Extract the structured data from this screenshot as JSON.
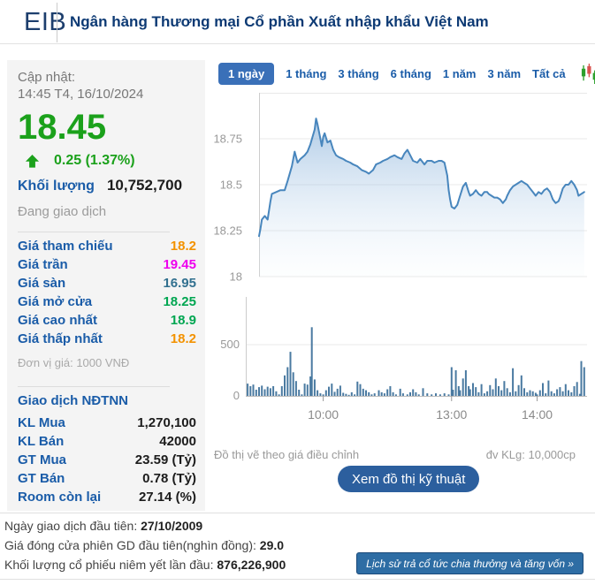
{
  "header": {
    "ticker": "EIB",
    "company_name": "Ngân hàng Thương mại Cổ phần Xuất nhập khẩu Việt Nam"
  },
  "sidebar": {
    "updated_label": "Cập nhật:",
    "updated_time": "14:45 T4, 16/10/2024",
    "price": "18.45",
    "change": "0.25 (1.37%)",
    "volume_label": "Khối lượng",
    "volume": "10,752,700",
    "session_status": "Đang giao dịch",
    "price_rows": [
      {
        "label": "Giá tham chiếu",
        "value": "18.2",
        "color": "#f39200"
      },
      {
        "label": "Giá trần",
        "value": "19.45",
        "color": "#ee00ee"
      },
      {
        "label": "Giá sàn",
        "value": "16.95",
        "color": "#31708f"
      },
      {
        "label": "Giá mở cửa",
        "value": "18.25",
        "color": "#00a651"
      },
      {
        "label": "Giá cao nhất",
        "value": "18.9",
        "color": "#00a651"
      },
      {
        "label": "Giá thấp nhất",
        "value": "18.2",
        "color": "#f39200"
      }
    ],
    "price_unit_note": "Đơn vị giá: 1000 VNĐ",
    "foreign_header": "Giao dịch NĐTNN",
    "foreign_rows": [
      {
        "label": "KL Mua",
        "value": "1,270,100"
      },
      {
        "label": "KL Bán",
        "value": "42000"
      },
      {
        "label": "GT Mua",
        "value": "23.59 (Tỷ)"
      },
      {
        "label": "GT Bán",
        "value": "0.78 (Tỷ)"
      },
      {
        "label": "Room còn lại",
        "value": "27.14 (%)"
      }
    ]
  },
  "tabs": [
    {
      "label": "1 ngày",
      "active": true
    },
    {
      "label": "1 tháng",
      "active": false
    },
    {
      "label": "3 tháng",
      "active": false
    },
    {
      "label": "6 tháng",
      "active": false
    },
    {
      "label": "1 năm",
      "active": false
    },
    {
      "label": "3 năm",
      "active": false
    },
    {
      "label": "Tất cả",
      "active": false
    }
  ],
  "chart_notes": {
    "left": "Đồ thị vẽ theo giá điều chỉnh",
    "right": "đv KLg: 10,000cp"
  },
  "buttons": {
    "technical_chart": "Xem đồ thị kỹ thuật",
    "dividend_history": "Lịch sử trả cổ tức chia thưởng và tăng vốn »"
  },
  "footer": {
    "rows": [
      {
        "label": "Ngày giao dịch đầu tiên: ",
        "value": "27/10/2009"
      },
      {
        "label": "Giá đóng cửa phiên GD đầu tiên(nghìn đồng): ",
        "value": "29.0"
      },
      {
        "label": "Khối lượng cổ phiếu niêm yết lần đầu: ",
        "value": "876,226,900"
      }
    ]
  },
  "chart_data": {
    "type": "area",
    "title": "",
    "x_axis": "time (HOSE session 09:15-14:45, lunch break compressed, t = minutes after 09:15)",
    "x_ticks": [
      {
        "t": 45,
        "label": "10:00"
      },
      {
        "t": 135,
        "label": "13:00"
      },
      {
        "t": 195,
        "label": "14:00"
      }
    ],
    "price": {
      "ylabel": "price (1000 VND)",
      "ylim": [
        18,
        19
      ],
      "y_ticks": [
        18,
        18.25,
        18.5,
        18.75
      ],
      "line_color": "#4886bd",
      "fill_top": "rgba(110,160,210,0.55)",
      "fill_bottom": "rgba(238,246,252,0.12)",
      "points": [
        [
          0,
          18.22
        ],
        [
          1,
          18.26
        ],
        [
          2,
          18.31
        ],
        [
          4,
          18.33
        ],
        [
          6,
          18.31
        ],
        [
          7,
          18.36
        ],
        [
          8,
          18.41
        ],
        [
          9,
          18.45
        ],
        [
          12,
          18.46
        ],
        [
          15,
          18.47
        ],
        [
          18,
          18.47
        ],
        [
          20,
          18.52
        ],
        [
          23,
          18.6
        ],
        [
          25,
          18.68
        ],
        [
          27,
          18.62
        ],
        [
          29,
          18.64
        ],
        [
          32,
          18.66
        ],
        [
          34,
          18.68
        ],
        [
          36,
          18.72
        ],
        [
          39,
          18.8
        ],
        [
          40,
          18.86
        ],
        [
          41,
          18.83
        ],
        [
          43,
          18.75
        ],
        [
          44,
          18.71
        ],
        [
          45,
          18.76
        ],
        [
          46,
          18.78
        ],
        [
          48,
          18.73
        ],
        [
          50,
          18.74
        ],
        [
          52,
          18.69
        ],
        [
          54,
          18.66
        ],
        [
          56,
          18.65
        ],
        [
          59,
          18.64
        ],
        [
          61,
          18.63
        ],
        [
          64,
          18.62
        ],
        [
          66,
          18.61
        ],
        [
          69,
          18.6
        ],
        [
          72,
          18.58
        ],
        [
          75,
          18.57
        ],
        [
          77,
          18.56
        ],
        [
          80,
          18.58
        ],
        [
          82,
          18.61
        ],
        [
          85,
          18.62
        ],
        [
          87,
          18.63
        ],
        [
          90,
          18.64
        ],
        [
          92,
          18.65
        ],
        [
          95,
          18.66
        ],
        [
          97,
          18.65
        ],
        [
          100,
          18.64
        ],
        [
          102,
          18.67
        ],
        [
          104,
          18.69
        ],
        [
          106,
          18.66
        ],
        [
          108,
          18.63
        ],
        [
          111,
          18.62
        ],
        [
          113,
          18.64
        ],
        [
          116,
          18.61
        ],
        [
          118,
          18.63
        ],
        [
          121,
          18.63
        ],
        [
          123,
          18.62
        ],
        [
          126,
          18.63
        ],
        [
          128,
          18.63
        ],
        [
          130,
          18.62
        ],
        [
          132,
          18.55
        ],
        [
          133,
          18.47
        ],
        [
          134,
          18.42
        ],
        [
          135,
          18.38
        ],
        [
          137,
          18.37
        ],
        [
          139,
          18.39
        ],
        [
          141,
          18.44
        ],
        [
          143,
          18.49
        ],
        [
          145,
          18.51
        ],
        [
          147,
          18.46
        ],
        [
          148,
          18.44
        ],
        [
          150,
          18.45
        ],
        [
          152,
          18.47
        ],
        [
          154,
          18.45
        ],
        [
          156,
          18.44
        ],
        [
          158,
          18.46
        ],
        [
          160,
          18.46
        ],
        [
          161,
          18.45
        ],
        [
          163,
          18.44
        ],
        [
          165,
          18.43
        ],
        [
          167,
          18.43
        ],
        [
          169,
          18.42
        ],
        [
          171,
          18.4
        ],
        [
          173,
          18.42
        ],
        [
          174,
          18.44
        ],
        [
          176,
          18.47
        ],
        [
          178,
          18.49
        ],
        [
          180,
          18.5
        ],
        [
          182,
          18.51
        ],
        [
          184,
          18.52
        ],
        [
          186,
          18.51
        ],
        [
          188,
          18.5
        ],
        [
          190,
          18.48
        ],
        [
          192,
          18.46
        ],
        [
          194,
          18.44
        ],
        [
          196,
          18.46
        ],
        [
          198,
          18.45
        ],
        [
          200,
          18.47
        ],
        [
          202,
          18.48
        ],
        [
          204,
          18.46
        ],
        [
          206,
          18.42
        ],
        [
          208,
          18.4
        ],
        [
          210,
          18.41
        ],
        [
          211,
          18.43
        ],
        [
          213,
          18.48
        ],
        [
          215,
          18.5
        ],
        [
          217,
          18.5
        ],
        [
          219,
          18.52
        ],
        [
          221,
          18.5
        ],
        [
          223,
          18.47
        ],
        [
          224,
          18.44
        ],
        [
          226,
          18.45
        ],
        [
          228,
          18.46
        ]
      ]
    },
    "volume": {
      "ylabel": "volume (unit 10,000 shares)",
      "ylim": [
        0,
        950
      ],
      "y_ticks": [
        0,
        500
      ],
      "bar_color": "#4a7aa1",
      "bars": [
        [
          -8,
          120
        ],
        [
          -6,
          95
        ],
        [
          -4,
          110
        ],
        [
          -2,
          60
        ],
        [
          0,
          85
        ],
        [
          2,
          100
        ],
        [
          4,
          65
        ],
        [
          6,
          90
        ],
        [
          8,
          75
        ],
        [
          10,
          95
        ],
        [
          12,
          45
        ],
        [
          14,
          15
        ],
        [
          16,
          95
        ],
        [
          18,
          200
        ],
        [
          20,
          280
        ],
        [
          22,
          430
        ],
        [
          24,
          230
        ],
        [
          26,
          145
        ],
        [
          28,
          60
        ],
        [
          30,
          15
        ],
        [
          32,
          120
        ],
        [
          34,
          110
        ],
        [
          36,
          190
        ],
        [
          37,
          670
        ],
        [
          39,
          160
        ],
        [
          41,
          55
        ],
        [
          43,
          25
        ],
        [
          45,
          15
        ],
        [
          47,
          55
        ],
        [
          49,
          90
        ],
        [
          51,
          120
        ],
        [
          53,
          40
        ],
        [
          55,
          70
        ],
        [
          57,
          100
        ],
        [
          59,
          30
        ],
        [
          61,
          20
        ],
        [
          63,
          10
        ],
        [
          65,
          35
        ],
        [
          67,
          15
        ],
        [
          69,
          140
        ],
        [
          71,
          115
        ],
        [
          73,
          70
        ],
        [
          75,
          55
        ],
        [
          77,
          35
        ],
        [
          79,
          15
        ],
        [
          81,
          25
        ],
        [
          84,
          55
        ],
        [
          86,
          35
        ],
        [
          88,
          25
        ],
        [
          90,
          65
        ],
        [
          92,
          95
        ],
        [
          94,
          35
        ],
        [
          96,
          15
        ],
        [
          99,
          70
        ],
        [
          101,
          25
        ],
        [
          104,
          15
        ],
        [
          106,
          35
        ],
        [
          108,
          65
        ],
        [
          110,
          35
        ],
        [
          112,
          15
        ],
        [
          115,
          75
        ],
        [
          118,
          25
        ],
        [
          121,
          15
        ],
        [
          124,
          25
        ],
        [
          127,
          15
        ],
        [
          130,
          25
        ],
        [
          133,
          15
        ],
        [
          135,
          280
        ],
        [
          136,
          60
        ],
        [
          138,
          250
        ],
        [
          140,
          95
        ],
        [
          141,
          55
        ],
        [
          143,
          170
        ],
        [
          145,
          250
        ],
        [
          147,
          95
        ],
        [
          148,
          65
        ],
        [
          150,
          125
        ],
        [
          152,
          85
        ],
        [
          154,
          35
        ],
        [
          156,
          115
        ],
        [
          158,
          25
        ],
        [
          160,
          45
        ],
        [
          162,
          105
        ],
        [
          164,
          65
        ],
        [
          166,
          170
        ],
        [
          168,
          95
        ],
        [
          170,
          55
        ],
        [
          172,
          145
        ],
        [
          174,
          75
        ],
        [
          176,
          35
        ],
        [
          178,
          270
        ],
        [
          180,
          45
        ],
        [
          182,
          105
        ],
        [
          184,
          200
        ],
        [
          186,
          75
        ],
        [
          188,
          35
        ],
        [
          190,
          55
        ],
        [
          192,
          45
        ],
        [
          194,
          30
        ],
        [
          195,
          15
        ],
        [
          197,
          55
        ],
        [
          199,
          125
        ],
        [
          201,
          25
        ],
        [
          203,
          150
        ],
        [
          205,
          45
        ],
        [
          207,
          25
        ],
        [
          209,
          65
        ],
        [
          211,
          85
        ],
        [
          213,
          45
        ],
        [
          215,
          115
        ],
        [
          217,
          55
        ],
        [
          219,
          35
        ],
        [
          221,
          95
        ],
        [
          223,
          135
        ],
        [
          225,
          20
        ],
        [
          226,
          340
        ],
        [
          228,
          280
        ]
      ]
    }
  }
}
